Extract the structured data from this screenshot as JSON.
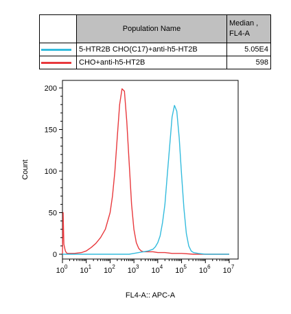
{
  "legend": {
    "header_name": "Population Name",
    "header_median_line1": "Median ,",
    "header_median_line2": "FL4-A",
    "rows": [
      {
        "name": "5-HTR2B CHO(C17)+anti-h5-HT2B",
        "median": "5.05E4",
        "color": "#33bbdd"
      },
      {
        "name": "CHO+anti-h5-HT2B",
        "median": "598",
        "color": "#e8383c"
      }
    ]
  },
  "chart_data": {
    "type": "line",
    "xlabel": "FL4-A:: APC-A",
    "ylabel": "Count",
    "x_scale": "log-like",
    "xlim": [
      0,
      7
    ],
    "ylim": [
      0,
      210
    ],
    "yticks": [
      0,
      50,
      100,
      150,
      200
    ],
    "xticks": [
      {
        "value": 0,
        "base": "10",
        "exp": "0"
      },
      {
        "value": 1,
        "base": "10",
        "exp": "1"
      },
      {
        "value": 2,
        "base": "10",
        "exp": "2"
      },
      {
        "value": 3,
        "base": "10",
        "exp": "3"
      },
      {
        "value": 4,
        "base": "10",
        "exp": "4"
      },
      {
        "value": 5,
        "base": "10",
        "exp": "5"
      },
      {
        "value": 6,
        "base": "10",
        "exp": "6"
      },
      {
        "value": 7,
        "base": "10",
        "exp": "7"
      }
    ],
    "grid": false,
    "series": [
      {
        "name": "CHO+anti-h5-HT2B",
        "color": "#e8383c",
        "x": [
          0.0,
          0.03,
          0.06,
          0.09,
          0.12,
          0.16,
          0.2,
          0.3,
          0.5,
          0.8,
          1.0,
          1.2,
          1.4,
          1.6,
          1.8,
          2.0,
          2.1,
          2.2,
          2.3,
          2.4,
          2.5,
          2.6,
          2.7,
          2.8,
          2.9,
          3.0,
          3.1,
          3.2,
          3.3,
          3.4,
          3.5,
          3.6,
          3.7,
          3.8,
          4.0,
          4.3,
          4.6,
          5.0,
          5.5,
          6.0,
          6.5,
          7.0
        ],
        "y": [
          0,
          50,
          12,
          8,
          4,
          2,
          1,
          1,
          1,
          2,
          4,
          8,
          13,
          20,
          30,
          50,
          70,
          100,
          140,
          180,
          199,
          196,
          160,
          110,
          60,
          30,
          14,
          7,
          4,
          3,
          3,
          3,
          3,
          3,
          2,
          2,
          1,
          1,
          0,
          0,
          0,
          0
        ]
      },
      {
        "name": "5-HTR2B CHO(C17)+anti-h5-HT2B",
        "color": "#33bbdd",
        "x": [
          0.0,
          2.0,
          2.5,
          2.8,
          3.0,
          3.2,
          3.4,
          3.6,
          3.8,
          3.9,
          4.0,
          4.1,
          4.2,
          4.3,
          4.4,
          4.5,
          4.6,
          4.7,
          4.8,
          4.9,
          5.0,
          5.1,
          5.2,
          5.3,
          5.4,
          5.5,
          5.7,
          6.0,
          6.5,
          7.0
        ],
        "y": [
          0,
          0,
          0,
          0,
          1,
          2,
          3,
          4,
          6,
          9,
          14,
          22,
          38,
          60,
          95,
          130,
          165,
          179,
          172,
          140,
          95,
          55,
          25,
          10,
          4,
          2,
          1,
          0,
          0,
          0
        ]
      }
    ]
  }
}
